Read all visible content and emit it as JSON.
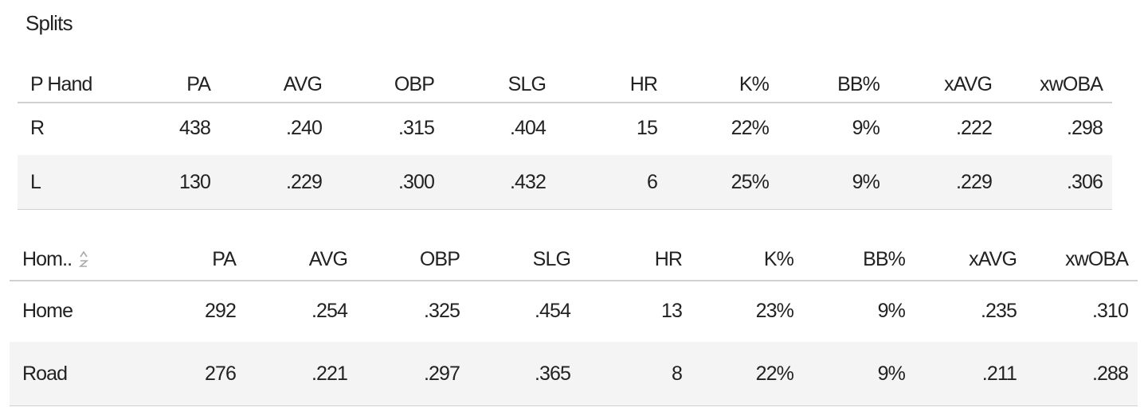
{
  "title": "Splits",
  "tables": [
    {
      "header": [
        "P Hand",
        "PA",
        "AVG",
        "OBP",
        "SLG",
        "HR",
        "K%",
        "BB%",
        "xAVG",
        "xwOBA"
      ],
      "rows": [
        [
          "R",
          "438",
          ".240",
          ".315",
          ".404",
          "15",
          "22%",
          "9%",
          ".222",
          ".298"
        ],
        [
          "L",
          "130",
          ".229",
          ".300",
          ".432",
          "6",
          "25%",
          "9%",
          ".229",
          ".306"
        ]
      ]
    },
    {
      "header": [
        "Hom..",
        "PA",
        "AVG",
        "OBP",
        "SLG",
        "HR",
        "K%",
        "BB%",
        "xAVG",
        "xwOBA"
      ],
      "rows": [
        [
          "Home",
          "292",
          ".254",
          ".325",
          ".454",
          "13",
          "23%",
          "9%",
          ".235",
          ".310"
        ],
        [
          "Road",
          "276",
          ".221",
          ".297",
          ".365",
          "8",
          "22%",
          "9%",
          ".211",
          ".288"
        ]
      ]
    }
  ]
}
